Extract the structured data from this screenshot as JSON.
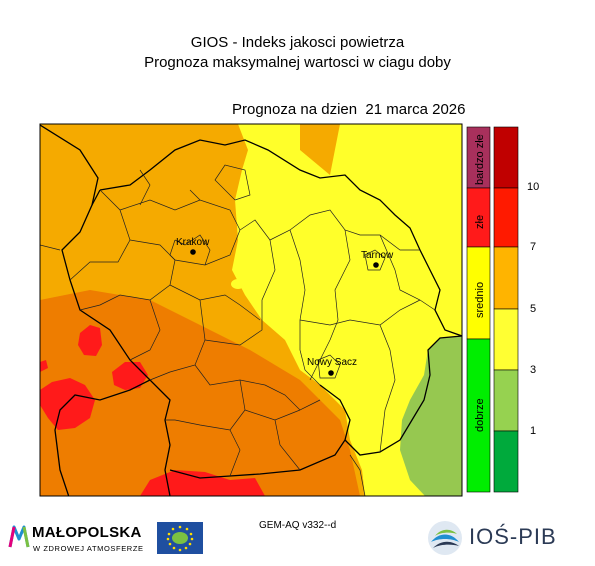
{
  "header": {
    "title": "GIOS - Indeks jakosci powietrza",
    "subtitle": "Prognoza maksymalnej wartosci w ciagu doby",
    "forecast_date": "Prognoza na dzien  21 marca 2026"
  },
  "cities": [
    {
      "name": "Krakow"
    },
    {
      "name": "Tarnow"
    },
    {
      "name": "Nowy Sacz"
    }
  ],
  "legend": {
    "categories": [
      {
        "label": "bardzo złe",
        "color": "#a8305c"
      },
      {
        "label": "złe",
        "color": "#ff1a1a"
      },
      {
        "label": "srednio",
        "color": "#ffff00"
      },
      {
        "label": "dobrze",
        "color": "#00ee00"
      }
    ],
    "scale": [
      {
        "color": "#c00000"
      },
      {
        "color": "#ff1a00"
      },
      {
        "color": "#ffb400"
      },
      {
        "color": "#ffff33"
      },
      {
        "color": "#96d250"
      },
      {
        "color": "#00aa3c"
      }
    ],
    "scale_labels": [
      "10",
      "7",
      "5",
      "3",
      "1"
    ]
  },
  "map_colors": {
    "orange": "#f5aa00",
    "dark_orange": "#ee7d00",
    "yellow": "#ffff2a",
    "green": "#96c850",
    "red": "#ff1a1a"
  },
  "footer": {
    "model_version": "GEM-AQ v332--d",
    "malopolska_title": "MAŁOPOLSKA",
    "malopolska_subtitle": "W ZDROWEJ ATMOSFERZE",
    "eu_logo": "eu-flag-life-logo",
    "ios_title": "IOŚ-PIB"
  }
}
